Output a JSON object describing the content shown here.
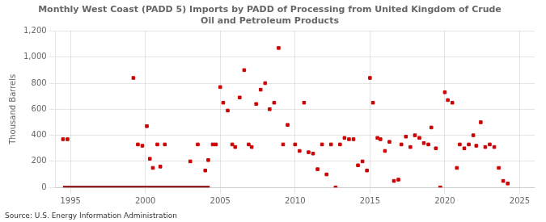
{
  "chart_data": {
    "type": "scatter",
    "title": "Monthly West Coast (PADD 5) Imports by PADD of Processing from United Kingdom of Crude\nOil and Petroleum Products",
    "ylabel": "Thousand Barrels",
    "annotation": "Source: U.S. Energy Information Administration",
    "xlim": [
      1994,
      2026
    ],
    "xticks": [
      1995,
      2000,
      2005,
      2010,
      2015,
      2020,
      2025
    ],
    "ylim": [
      0,
      1200
    ],
    "yticks": [
      0,
      200,
      400,
      600,
      800,
      {
        "value": 1000,
        "label": "1,000"
      },
      {
        "value": 1200,
        "label": "1,200"
      }
    ],
    "grid": true,
    "series": [
      {
        "type": "scatter",
        "color": "#cc0000",
        "marker": "square",
        "x": [
          1994.5,
          1994.8,
          1999.2,
          1999.5,
          1999.8,
          2000.1,
          2000.3,
          2000.5,
          2000.8,
          2001.0,
          2001.3,
          2003.0,
          2003.5,
          2004.0,
          2004.2,
          2004.5,
          2004.7,
          2005.0,
          2005.2,
          2005.5,
          2005.8,
          2006.0,
          2006.3,
          2006.6,
          2006.9,
          2007.1,
          2007.4,
          2007.7,
          2008.0,
          2008.3,
          2008.6,
          2008.9,
          2009.2,
          2009.5,
          2010.0,
          2010.3,
          2010.6,
          2010.9,
          2011.2,
          2011.5,
          2011.8,
          2012.1,
          2012.4,
          2012.7,
          2013.0,
          2013.3,
          2013.6,
          2013.9,
          2014.2,
          2014.5,
          2014.8,
          2015.0,
          2015.2,
          2015.5,
          2015.7,
          2016.0,
          2016.3,
          2016.6,
          2016.9,
          2017.1,
          2017.4,
          2017.7,
          2018.0,
          2018.3,
          2018.6,
          2018.9,
          2019.1,
          2019.4,
          2019.7,
          2020.0,
          2020.2,
          2020.5,
          2020.8,
          2021.0,
          2021.3,
          2021.6,
          2021.9,
          2022.1,
          2022.4,
          2022.7,
          2023.0,
          2023.3,
          2023.6,
          2023.9,
          2024.2
        ],
        "values": [
          370,
          370,
          840,
          330,
          320,
          470,
          220,
          150,
          330,
          160,
          330,
          200,
          330,
          130,
          210,
          330,
          330,
          770,
          650,
          590,
          330,
          310,
          690,
          900,
          330,
          310,
          640,
          750,
          800,
          600,
          650,
          1070,
          330,
          480,
          330,
          280,
          650,
          270,
          260,
          140,
          330,
          100,
          330,
          0,
          330,
          380,
          370,
          370,
          170,
          200,
          130,
          840,
          650,
          380,
          370,
          280,
          350,
          50,
          60,
          330,
          390,
          310,
          400,
          380,
          340,
          330,
          460,
          300,
          0,
          730,
          670,
          650,
          150,
          330,
          300,
          330,
          400,
          320,
          500,
          310,
          330,
          310,
          150,
          50,
          30
        ]
      },
      {
        "type": "line",
        "color": "#8b0000",
        "line_style": "solid",
        "x": [
          1994.5,
          2004.3
        ],
        "values": [
          0,
          0
        ]
      }
    ],
    "legend": false
  }
}
